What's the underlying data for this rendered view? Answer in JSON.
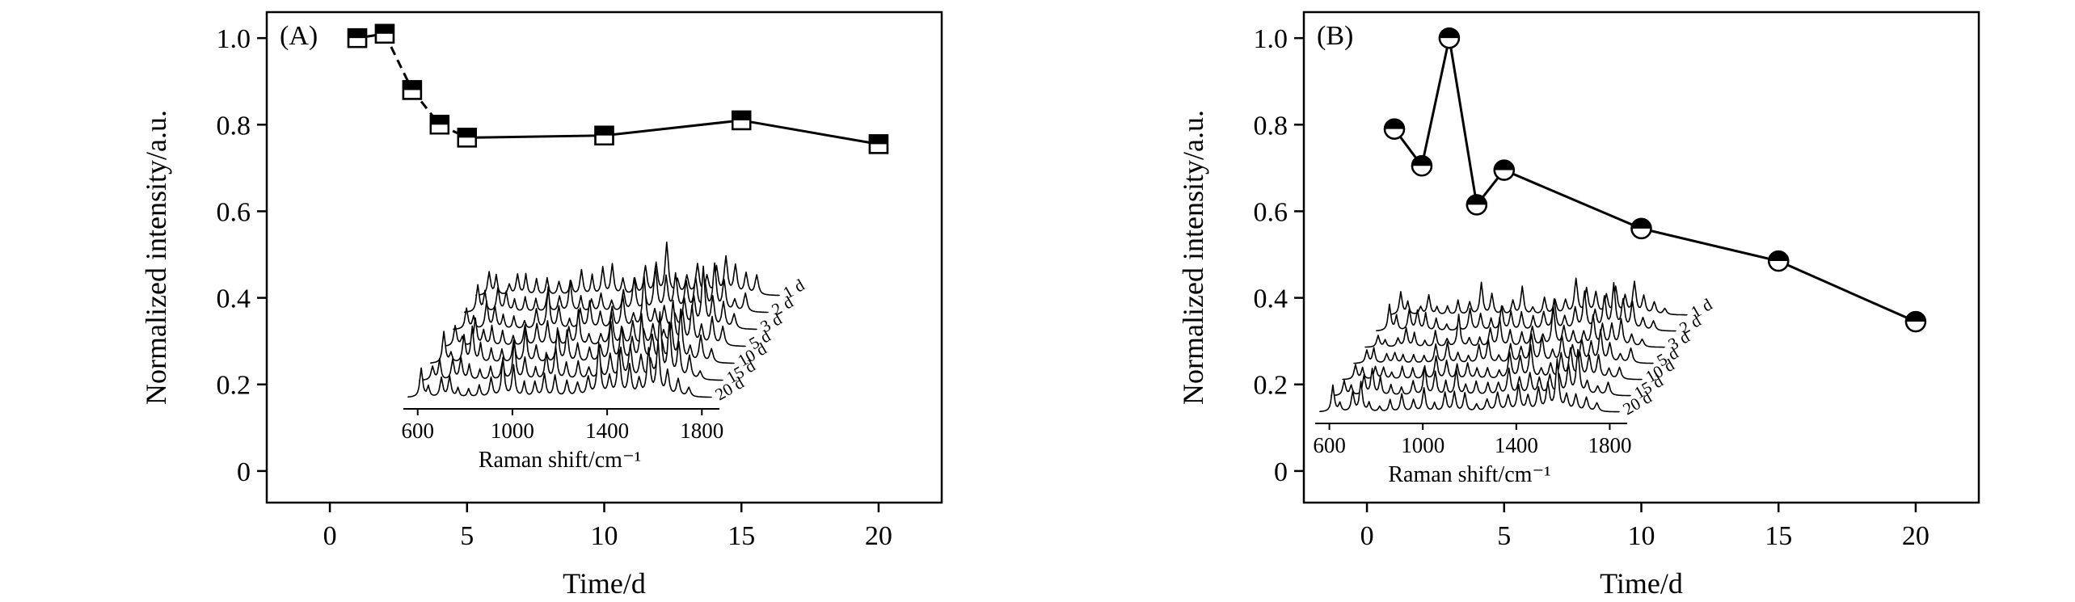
{
  "figure": {
    "background": "#ffffff",
    "ink": "#000000"
  },
  "chart_data": [
    {
      "type": "line",
      "panel_label": "(A)",
      "marker": "half-filled-square",
      "x": [
        1,
        2,
        3,
        4,
        5,
        10,
        15,
        20
      ],
      "values": [
        1.0,
        1.01,
        0.88,
        0.8,
        0.77,
        0.775,
        0.81,
        0.755
      ],
      "xlabel": "Time/d",
      "ylabel": "Normalized intensity/a.u.",
      "xlim": [
        -2.3,
        22.3
      ],
      "ylim": [
        -0.073,
        1.06
      ],
      "xticks": [
        0,
        5,
        10,
        15,
        20
      ],
      "xtick_labels": [
        "0",
        "5",
        "10",
        "15",
        "20"
      ],
      "yticks": [
        0,
        0.2,
        0.4,
        0.6,
        0.8,
        1.0
      ],
      "ytick_labels": [
        "0",
        "0.2",
        "0.4",
        "0.6",
        "0.8",
        "1.0"
      ],
      "dashed_segments": [
        1,
        2,
        3
      ],
      "grid": false,
      "inset": {
        "type": "waterfall",
        "xlabel": "Raman shift/cm⁻¹",
        "xticks": [
          600,
          1000,
          1400,
          1800
        ],
        "xtick_labels": [
          "600",
          "1000",
          "1400",
          "1800"
        ],
        "traces": [
          "1 d",
          "2 d",
          "3 d",
          "5 d",
          "10 d",
          "15 d",
          "20 d"
        ]
      }
    },
    {
      "type": "line",
      "panel_label": "(B)",
      "marker": "half-filled-circle",
      "x": [
        1,
        2,
        3,
        4,
        5,
        10,
        15,
        20
      ],
      "values": [
        0.79,
        0.705,
        1.0,
        0.615,
        0.695,
        0.56,
        0.485,
        0.345
      ],
      "xlabel": "Time/d",
      "ylabel": "Normalized intensity/a.u.",
      "xlim": [
        -2.3,
        22.3
      ],
      "ylim": [
        -0.073,
        1.06
      ],
      "xticks": [
        0,
        5,
        10,
        15,
        20
      ],
      "xtick_labels": [
        "0",
        "5",
        "10",
        "15",
        "20"
      ],
      "yticks": [
        0,
        0.2,
        0.4,
        0.6,
        0.8,
        1.0
      ],
      "ytick_labels": [
        "0",
        "0.2",
        "0.4",
        "0.6",
        "0.8",
        "1.0"
      ],
      "dashed_segments": [],
      "grid": false,
      "inset": {
        "type": "waterfall",
        "xlabel": "Raman shift/cm⁻¹",
        "xticks": [
          600,
          1000,
          1400,
          1800
        ],
        "xtick_labels": [
          "600",
          "1000",
          "1400",
          "1800"
        ],
        "traces": [
          "1 d",
          "2 d",
          "3 d",
          "5 d",
          "10 d",
          "15 d",
          "20 d"
        ]
      }
    }
  ]
}
